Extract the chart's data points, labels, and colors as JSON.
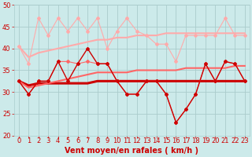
{
  "x": [
    0,
    1,
    2,
    3,
    4,
    5,
    6,
    7,
    8,
    9,
    10,
    11,
    12,
    13,
    14,
    15,
    16,
    17,
    18,
    19,
    20,
    21,
    22,
    23
  ],
  "series": [
    {
      "name": "gusts_light",
      "color": "#ffaaaa",
      "linewidth": 0.8,
      "marker": "D",
      "markersize": 2.0,
      "zorder": 2,
      "values": [
        40.5,
        36.5,
        47,
        43,
        47,
        44,
        47,
        44,
        47,
        40,
        44,
        47,
        44,
        43,
        41,
        41,
        37,
        43,
        43,
        43,
        43,
        47,
        43,
        43
      ]
    },
    {
      "name": "mean_light",
      "color": "#ffaaaa",
      "linewidth": 1.5,
      "marker": null,
      "markersize": 0,
      "zorder": 1,
      "values": [
        40.5,
        38,
        39,
        39.5,
        40,
        40.5,
        41,
        41.5,
        42,
        42,
        42.5,
        42.5,
        43,
        43,
        43,
        43.5,
        43.5,
        43.5,
        43.5,
        43.5,
        43.5,
        43.5,
        43.5,
        43.5
      ]
    },
    {
      "name": "gusts_medium",
      "color": "#ff6666",
      "linewidth": 0.8,
      "marker": "D",
      "markersize": 2.0,
      "zorder": 3,
      "values": [
        32.5,
        29.5,
        32.5,
        32.5,
        37,
        37,
        36.5,
        37,
        36.5,
        36.5,
        32.5,
        29.5,
        29.5,
        32.5,
        32.5,
        29.5,
        23,
        26,
        29.5,
        36.5,
        32.5,
        37,
        36.5,
        32.5
      ]
    },
    {
      "name": "mean_medium",
      "color": "#ff6666",
      "linewidth": 1.5,
      "marker": null,
      "markersize": 0,
      "zorder": 2,
      "values": [
        32.5,
        31,
        31.5,
        32,
        32.5,
        33,
        33.5,
        34,
        34.5,
        34.5,
        34.5,
        34.5,
        35,
        35,
        35,
        35,
        35,
        35.5,
        35.5,
        35.5,
        35.5,
        35.5,
        36,
        36
      ]
    },
    {
      "name": "mean_dark",
      "color": "#cc0000",
      "linewidth": 2.2,
      "marker": null,
      "markersize": 0,
      "zorder": 1,
      "values": [
        32.5,
        31.5,
        32,
        32,
        32,
        32,
        32,
        32,
        32.5,
        32.5,
        32.5,
        32.5,
        32.5,
        32.5,
        32.5,
        32.5,
        32.5,
        32.5,
        32.5,
        32.5,
        32.5,
        32.5,
        32.5,
        32.5
      ]
    },
    {
      "name": "actual_dark",
      "color": "#cc0000",
      "linewidth": 1.0,
      "marker": "D",
      "markersize": 2.0,
      "zorder": 4,
      "values": [
        32.5,
        29.5,
        32.5,
        32.5,
        37,
        32.5,
        36.5,
        40,
        36.5,
        36.5,
        32.5,
        29.5,
        29.5,
        32.5,
        32.5,
        29.5,
        23,
        26,
        29.5,
        36.5,
        32.5,
        37,
        36.5,
        32.5
      ]
    }
  ],
  "xlabel": "Vent moyen/en rafales ( km/h )",
  "xlim_min": -0.5,
  "xlim_max": 23.5,
  "ylim": [
    20,
    50
  ],
  "yticks": [
    20,
    25,
    30,
    35,
    40,
    45,
    50
  ],
  "xticks": [
    0,
    1,
    2,
    3,
    4,
    5,
    6,
    7,
    8,
    9,
    10,
    11,
    12,
    13,
    14,
    15,
    16,
    17,
    18,
    19,
    20,
    21,
    22,
    23
  ],
  "bg_color": "#cceaea",
  "grid_color": "#aacccc",
  "tick_label_color": "#cc0000",
  "xlabel_color": "#cc0000",
  "xlabel_fontsize": 7,
  "tick_fontsize": 6,
  "ytick_fontsize": 6
}
